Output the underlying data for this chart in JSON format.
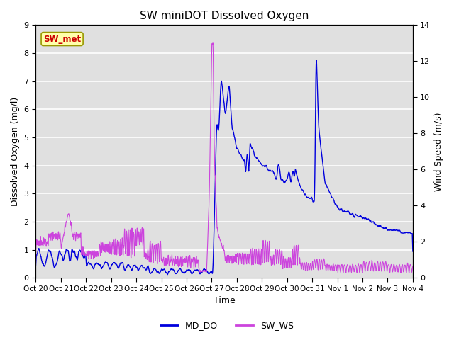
{
  "title": "SW miniDOT Dissolved Oxygen",
  "xlabel": "Time",
  "ylabel_left": "Dissolved Oxygen (mg/l)",
  "ylabel_right": "Wind Speed (m/s)",
  "ylim_left": [
    0.0,
    9.0
  ],
  "ylim_right": [
    0,
    14
  ],
  "yticks_left": [
    0.0,
    1.0,
    2.0,
    3.0,
    4.0,
    5.0,
    6.0,
    7.0,
    8.0,
    9.0
  ],
  "yticks_right": [
    0,
    2,
    4,
    6,
    8,
    10,
    12,
    14
  ],
  "xtick_labels": [
    "Oct 20",
    "Oct 21",
    "Oct 22",
    "Oct 23",
    "Oct 24",
    "Oct 25",
    "Oct 26",
    "Oct 27",
    "Oct 28",
    "Oct 29",
    "Oct 30",
    "Oct 31",
    "Nov 1",
    "Nov 2",
    "Nov 3",
    "Nov 4"
  ],
  "color_do": "#0000dd",
  "color_ws": "#cc44dd",
  "color_bg": "#e0e0e0",
  "annotation_text": "SW_met",
  "annotation_color": "#cc0000",
  "annotation_bg": "#ffffaa",
  "legend_do": "MD_DO",
  "legend_ws": "SW_WS",
  "figsize": [
    6.4,
    4.8
  ],
  "dpi": 100
}
